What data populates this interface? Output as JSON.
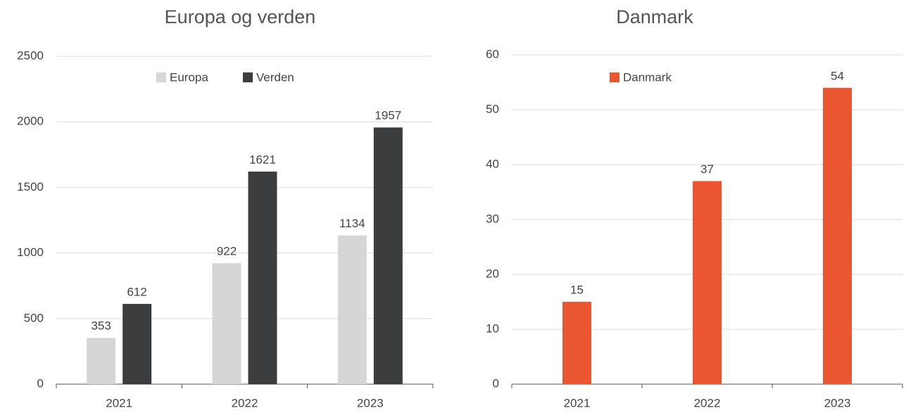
{
  "chart_data": [
    {
      "type": "bar",
      "title": "Europa og verden",
      "categories": [
        "2021",
        "2022",
        "2023"
      ],
      "series": [
        {
          "name": "Europa",
          "color": "#d6d6d6",
          "values": [
            353,
            922,
            1134
          ]
        },
        {
          "name": "Verden",
          "color": "#3c3d3f",
          "values": [
            612,
            1621,
            1957
          ]
        }
      ],
      "ylim": [
        0,
        2500
      ],
      "yticks": [
        0,
        500,
        1000,
        1500,
        2000,
        2500
      ],
      "grid": true,
      "legend": "top"
    },
    {
      "type": "bar",
      "title": "Danmark",
      "categories": [
        "2021",
        "2022",
        "2023"
      ],
      "series": [
        {
          "name": "Danmark",
          "color": "#e95631",
          "values": [
            15,
            37,
            54
          ]
        }
      ],
      "ylim": [
        0,
        60
      ],
      "yticks": [
        0,
        10,
        20,
        30,
        40,
        50,
        60
      ],
      "grid": true,
      "legend": "top"
    }
  ]
}
